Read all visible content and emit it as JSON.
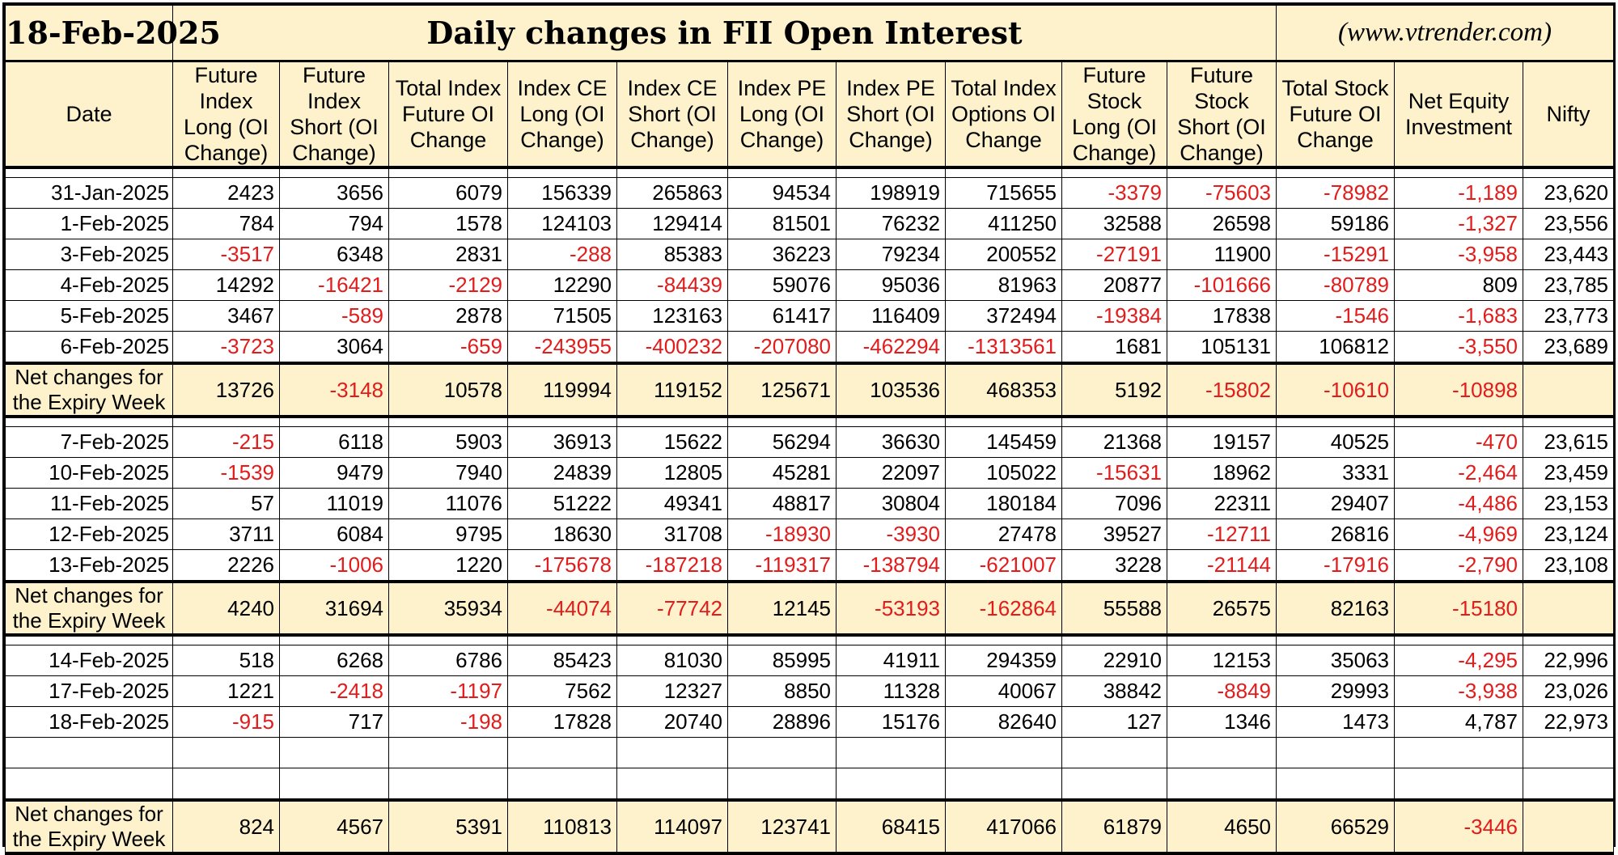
{
  "header": {
    "date": "18-Feb-2025",
    "title": "Daily changes in FII Open Interest",
    "site": "(www.vtrender.com)"
  },
  "columns": [
    "Date",
    "Future Index Long (OI Change)",
    "Future Index Short (OI Change)",
    "Total Index Future OI Change",
    "Index CE Long (OI Change)",
    "Index CE Short (OI Change)",
    "Index PE Long (OI Change)",
    "Index PE Short (OI Change)",
    "Total Index Options OI Change",
    "Future Stock Long (OI Change)",
    "Future Stock Short (OI Change)",
    "Total Stock Future OI Change",
    "Net Equity Investment",
    "Nifty"
  ],
  "net_label": "Net changes for the Expiry Week",
  "colors": {
    "header_bg": "#fdf2cc",
    "negative": "#e31b1b",
    "border": "#000000"
  },
  "groups": [
    {
      "rows": [
        [
          "31-Jan-2025",
          "2423",
          "3656",
          "6079",
          "156339",
          "265863",
          "94534",
          "198919",
          "715655",
          "-3379",
          "-75603",
          "-78982",
          "-1,189",
          "23,620"
        ],
        [
          "1-Feb-2025",
          "784",
          "794",
          "1578",
          "124103",
          "129414",
          "81501",
          "76232",
          "411250",
          "32588",
          "26598",
          "59186",
          "-1,327",
          "23,556"
        ],
        [
          "3-Feb-2025",
          "-3517",
          "6348",
          "2831",
          "-288",
          "85383",
          "36223",
          "79234",
          "200552",
          "-27191",
          "11900",
          "-15291",
          "-3,958",
          "23,443"
        ],
        [
          "4-Feb-2025",
          "14292",
          "-16421",
          "-2129",
          "12290",
          "-84439",
          "59076",
          "95036",
          "81963",
          "20877",
          "-101666",
          "-80789",
          "809",
          "23,785"
        ],
        [
          "5-Feb-2025",
          "3467",
          "-589",
          "2878",
          "71505",
          "123163",
          "61417",
          "116409",
          "372494",
          "-19384",
          "17838",
          "-1546",
          "-1,683",
          "23,773"
        ],
        [
          "6-Feb-2025",
          "-3723",
          "3064",
          "-659",
          "-243955",
          "-400232",
          "-207080",
          "-462294",
          "-1313561",
          "1681",
          "105131",
          "106812",
          "-3,550",
          "23,689"
        ]
      ],
      "blank_rows": 0,
      "net": [
        "13726",
        "-3148",
        "10578",
        "119994",
        "119152",
        "125671",
        "103536",
        "468353",
        "5192",
        "-15802",
        "-10610",
        "-10898",
        ""
      ]
    },
    {
      "rows": [
        [
          "7-Feb-2025",
          "-215",
          "6118",
          "5903",
          "36913",
          "15622",
          "56294",
          "36630",
          "145459",
          "21368",
          "19157",
          "40525",
          "-470",
          "23,615"
        ],
        [
          "10-Feb-2025",
          "-1539",
          "9479",
          "7940",
          "24839",
          "12805",
          "45281",
          "22097",
          "105022",
          "-15631",
          "18962",
          "3331",
          "-2,464",
          "23,459"
        ],
        [
          "11-Feb-2025",
          "57",
          "11019",
          "11076",
          "51222",
          "49341",
          "48817",
          "30804",
          "180184",
          "7096",
          "22311",
          "29407",
          "-4,486",
          "23,153"
        ],
        [
          "12-Feb-2025",
          "3711",
          "6084",
          "9795",
          "18630",
          "31708",
          "-18930",
          "-3930",
          "27478",
          "39527",
          "-12711",
          "26816",
          "-4,969",
          "23,124"
        ],
        [
          "13-Feb-2025",
          "2226",
          "-1006",
          "1220",
          "-175678",
          "-187218",
          "-119317",
          "-138794",
          "-621007",
          "3228",
          "-21144",
          "-17916",
          "-2,790",
          "23,108"
        ]
      ],
      "blank_rows": 0,
      "net": [
        "4240",
        "31694",
        "35934",
        "-44074",
        "-77742",
        "12145",
        "-53193",
        "-162864",
        "55588",
        "26575",
        "82163",
        "-15180",
        ""
      ]
    },
    {
      "rows": [
        [
          "14-Feb-2025",
          "518",
          "6268",
          "6786",
          "85423",
          "81030",
          "85995",
          "41911",
          "294359",
          "22910",
          "12153",
          "35063",
          "-4,295",
          "22,996"
        ],
        [
          "17-Feb-2025",
          "1221",
          "-2418",
          "-1197",
          "7562",
          "12327",
          "8850",
          "11328",
          "40067",
          "38842",
          "-8849",
          "29993",
          "-3,938",
          "23,026"
        ],
        [
          "18-Feb-2025",
          "-915",
          "717",
          "-198",
          "17828",
          "20740",
          "28896",
          "15176",
          "82640",
          "127",
          "1346",
          "1473",
          "4,787",
          "22,973"
        ]
      ],
      "blank_rows": 2,
      "net": [
        "824",
        "4567",
        "5391",
        "110813",
        "114097",
        "123741",
        "68415",
        "417066",
        "61879",
        "4650",
        "66529",
        "-3446",
        ""
      ]
    }
  ]
}
